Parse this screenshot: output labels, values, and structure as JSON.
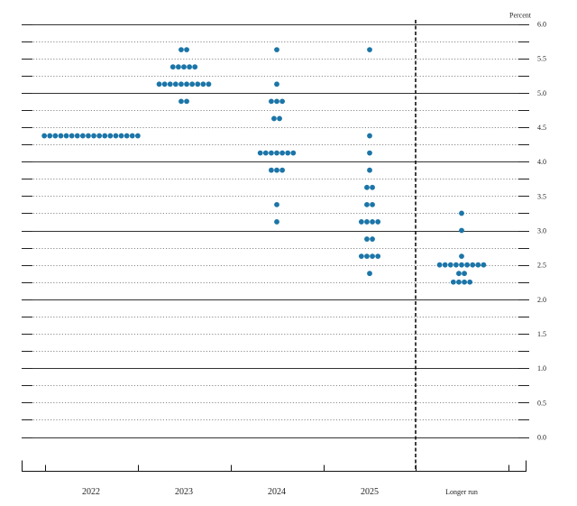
{
  "chart_data": {
    "type": "scatter",
    "subtype": "dot-plot",
    "unit_label": "Percent",
    "categories": [
      "2022",
      "2023",
      "2024",
      "2025",
      "Longer run"
    ],
    "y_ticks": [
      "0.0",
      "0.5",
      "1.0",
      "1.5",
      "2.0",
      "2.5",
      "3.0",
      "3.5",
      "4.0",
      "4.5",
      "5.0",
      "5.5",
      "6.0"
    ],
    "ylim": [
      0,
      6
    ],
    "grid": "dotted horizontal lines every 0.125; solid line at every whole percent",
    "separator": "dashed vertical line before Longer run",
    "dot_color": "#1b75a8",
    "series": [
      {
        "category": "2022",
        "dots": [
          {
            "y": 4.375,
            "count": 18
          }
        ]
      },
      {
        "category": "2023",
        "dots": [
          {
            "y": 5.625,
            "count": 2
          },
          {
            "y": 5.375,
            "count": 5
          },
          {
            "y": 5.125,
            "count": 10
          },
          {
            "y": 4.875,
            "count": 2
          }
        ]
      },
      {
        "category": "2024",
        "dots": [
          {
            "y": 5.625,
            "count": 1
          },
          {
            "y": 5.125,
            "count": 1
          },
          {
            "y": 4.875,
            "count": 3
          },
          {
            "y": 4.625,
            "count": 2
          },
          {
            "y": 4.125,
            "count": 7
          },
          {
            "y": 3.875,
            "count": 3
          },
          {
            "y": 3.375,
            "count": 1
          },
          {
            "y": 3.125,
            "count": 1
          }
        ]
      },
      {
        "category": "2025",
        "dots": [
          {
            "y": 5.625,
            "count": 1
          },
          {
            "y": 4.375,
            "count": 1
          },
          {
            "y": 4.125,
            "count": 1
          },
          {
            "y": 3.875,
            "count": 1
          },
          {
            "y": 3.625,
            "count": 2
          },
          {
            "y": 3.375,
            "count": 2
          },
          {
            "y": 3.125,
            "count": 4
          },
          {
            "y": 2.875,
            "count": 2
          },
          {
            "y": 2.625,
            "count": 4
          },
          {
            "y": 2.375,
            "count": 1
          }
        ]
      },
      {
        "category": "Longer run",
        "dots": [
          {
            "y": 3.25,
            "count": 1
          },
          {
            "y": 3.0,
            "count": 1
          },
          {
            "y": 2.625,
            "count": 1
          },
          {
            "y": 2.5,
            "count": 9
          },
          {
            "y": 2.375,
            "count": 2
          },
          {
            "y": 2.25,
            "count": 4
          }
        ]
      }
    ]
  }
}
